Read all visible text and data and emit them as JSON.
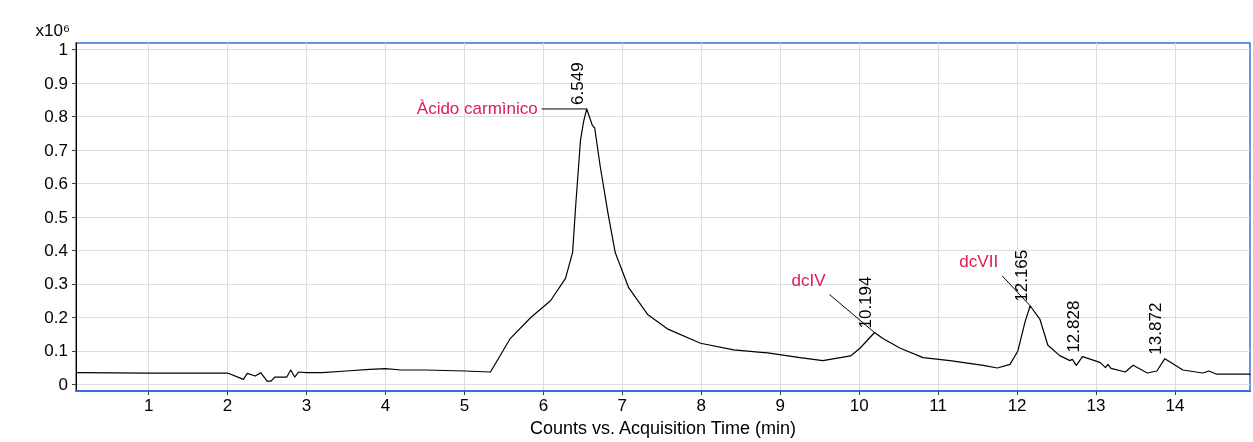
{
  "chart_data": {
    "type": "line",
    "xlabel": "Counts vs. Acquisition Time (min)",
    "ylabel": "x10⁶",
    "xlim": [
      0.08,
      14.95
    ],
    "ylim": [
      -0.02,
      1.02
    ],
    "xticks": [
      1,
      2,
      3,
      4,
      5,
      6,
      7,
      8,
      9,
      10,
      11,
      12,
      13,
      14
    ],
    "yticks": [
      0,
      0.1,
      0.2,
      0.3,
      0.4,
      0.5,
      0.6,
      0.7,
      0.8,
      0.9,
      1
    ],
    "grid": true,
    "marker": "none",
    "line_style": "solid",
    "series": [
      {
        "color": "#000000",
        "x": [
          0.1,
          1.0,
          2.0,
          2.2,
          2.25,
          2.35,
          2.42,
          2.5,
          2.55,
          2.6,
          2.75,
          2.8,
          2.85,
          2.9,
          3.0,
          3.2,
          3.5,
          3.8,
          4.0,
          4.2,
          4.5,
          5.0,
          5.33,
          5.58,
          5.84,
          6.09,
          6.28,
          6.37,
          6.41,
          6.47,
          6.51,
          6.549,
          6.62,
          6.65,
          6.72,
          6.82,
          6.91,
          7.08,
          7.32,
          7.57,
          7.99,
          8.41,
          8.84,
          9.25,
          9.54,
          9.89,
          10.01,
          10.194,
          10.3,
          10.52,
          10.81,
          11.15,
          11.57,
          11.75,
          11.91,
          12.01,
          12.1,
          12.165,
          12.29,
          12.39,
          12.54,
          12.67,
          12.7,
          12.75,
          12.828,
          13.05,
          13.12,
          13.15,
          13.19,
          13.37,
          13.47,
          13.65,
          13.77,
          13.872,
          14.1,
          14.35,
          14.43,
          14.52,
          14.95
        ],
        "values": [
          0.035,
          0.034,
          0.034,
          0.015,
          0.033,
          0.025,
          0.035,
          0.01,
          0.01,
          0.022,
          0.022,
          0.043,
          0.022,
          0.037,
          0.035,
          0.035,
          0.04,
          0.045,
          0.047,
          0.043,
          0.043,
          0.04,
          0.037,
          0.137,
          0.2,
          0.25,
          0.317,
          0.394,
          0.537,
          0.73,
          0.786,
          0.823,
          0.774,
          0.766,
          0.651,
          0.509,
          0.394,
          0.289,
          0.209,
          0.166,
          0.123,
          0.103,
          0.094,
          0.08,
          0.071,
          0.085,
          0.108,
          0.155,
          0.137,
          0.108,
          0.08,
          0.071,
          0.057,
          0.049,
          0.06,
          0.1,
          0.186,
          0.235,
          0.194,
          0.117,
          0.086,
          0.071,
          0.075,
          0.057,
          0.083,
          0.066,
          0.05,
          0.06,
          0.048,
          0.037,
          0.057,
          0.034,
          0.04,
          0.077,
          0.043,
          0.034,
          0.04,
          0.031,
          0.031
        ]
      }
    ],
    "annotations": [
      {
        "text": "Àcido carmìnico",
        "x": 6.549,
        "y": 0.823
      },
      {
        "text": "6.549",
        "x": 6.549,
        "y": 0.823
      },
      {
        "text": "dcIV",
        "x": 10.194,
        "y": 0.155
      },
      {
        "text": "10.194",
        "x": 10.194,
        "y": 0.155
      },
      {
        "text": "dcVII",
        "x": 12.165,
        "y": 0.235
      },
      {
        "text": "12.165",
        "x": 12.165,
        "y": 0.235
      },
      {
        "text": "12.828",
        "x": 12.828,
        "y": 0.083
      },
      {
        "text": "13.872",
        "x": 13.872,
        "y": 0.077
      }
    ]
  }
}
